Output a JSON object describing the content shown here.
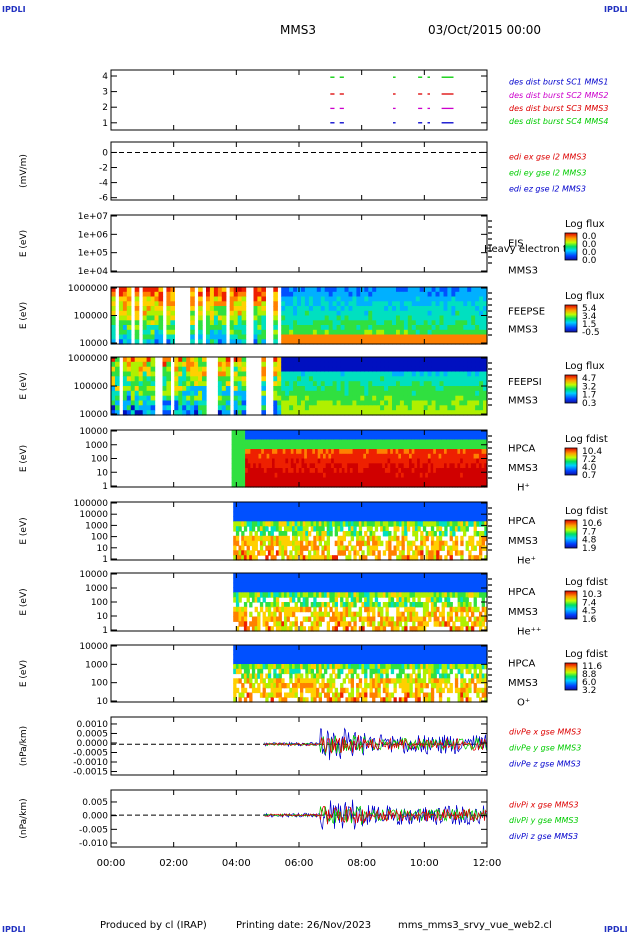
{
  "header": {
    "corner_tl": "IPDLI",
    "corner_tr": "IPDLI",
    "corner_bl": "IPDLI",
    "corner_br": "IPDLI",
    "spacecraft": "MMS3",
    "date": "03/Oct/2015 00:00"
  },
  "footer": {
    "produced_by": "Produced by cl (IRAP)",
    "printing_date": "Printing date: 26/Nov/2023",
    "filename": "mms_mms3_srvy_vue_web2.cl"
  },
  "colors": {
    "red": "#dd0000",
    "green": "#00cc00",
    "blue": "#0000cc",
    "magenta": "#cc00cc"
  },
  "chart_data": {
    "type": "multi-panel time series",
    "x_ticks": [
      "00:00",
      "02:00",
      "04:00",
      "06:00",
      "08:00",
      "10:00",
      "12:00"
    ],
    "x_range_hours": [
      0,
      12
    ],
    "panels": [
      {
        "id": "burst",
        "type": "timeline",
        "yticks": [
          "4",
          "3",
          "2",
          "1"
        ],
        "ylabel": "",
        "legend": [
          {
            "text": "des dist burst SC1 MMS1",
            "color": "#0000cc"
          },
          {
            "text": "des dist burst SC2 MMS2",
            "color": "#cc00cc"
          },
          {
            "text": "des dist burst SC3 MMS3",
            "color": "#dd0000"
          },
          {
            "text": "des dist burst SC4 MMS4",
            "color": "#00cc00"
          }
        ],
        "intervals_hours": [
          [
            7.0,
            7.1
          ],
          [
            7.3,
            7.4
          ],
          [
            9.0,
            9.05
          ],
          [
            9.8,
            9.9
          ],
          [
            10.1,
            10.15
          ],
          [
            10.55,
            10.9
          ]
        ]
      },
      {
        "id": "edi",
        "type": "line",
        "ylabel": "(mV/m)",
        "yticks": [
          "0",
          "-2",
          "-4",
          "-6"
        ],
        "ylim": [
          -7,
          1
        ],
        "legend": [
          {
            "text": "edi ex gse l2 MMS3",
            "color": "#dd0000"
          },
          {
            "text": "edi ey gse l2 MMS3",
            "color": "#00cc00"
          },
          {
            "text": "edi ez gse l2 MMS3",
            "color": "#0000cc"
          }
        ],
        "reference_line": 0
      },
      {
        "id": "eis",
        "type": "spectrogram",
        "ylabel": "E (eV)",
        "yticks": [
          "1e+07",
          "1e+06",
          "1e+05",
          "1e+04"
        ],
        "labels": [
          "EIS",
          "MMS3"
        ],
        "overlay_text": "Heavy electron to",
        "cbar_title": "Log flux",
        "cbar_ticks": [
          "0.0",
          "0.0",
          "0.0",
          "0.0"
        ],
        "data_start_hours": null
      },
      {
        "id": "feepse",
        "type": "spectrogram",
        "ylabel": "E (eV)",
        "yticks": [
          "1000000",
          "100000",
          "10000"
        ],
        "labels": [
          "FEEPSE",
          "MMS3"
        ],
        "cbar_title": "Log flux",
        "cbar_ticks": [
          "5.4",
          "3.4",
          "1.5",
          "-0.5"
        ],
        "data_start_hours": 0
      },
      {
        "id": "feepsi",
        "type": "spectrogram",
        "ylabel": "E (eV)",
        "yticks": [
          "1000000",
          "100000",
          "10000"
        ],
        "labels": [
          "FEEPSI",
          "MMS3"
        ],
        "cbar_title": "Log flux",
        "cbar_ticks": [
          "4.7",
          "3.2",
          "1.7",
          "0.3"
        ],
        "data_start_hours": 0
      },
      {
        "id": "hpca_h",
        "type": "spectrogram",
        "ylabel": "E (eV)",
        "yticks": [
          "10000",
          "1000",
          "100",
          "10",
          "1"
        ],
        "labels": [
          "HPCA",
          "MMS3",
          "H⁺"
        ],
        "cbar_title": "Log fdist",
        "cbar_ticks": [
          "10.4",
          "7.2",
          "4.0",
          "0.7"
        ],
        "data_start_hours": 3.85
      },
      {
        "id": "hpca_he1",
        "type": "spectrogram",
        "ylabel": "E (eV)",
        "yticks": [
          "100000",
          "10000",
          "1000",
          "100",
          "10",
          "1"
        ],
        "labels": [
          "HPCA",
          "MMS3",
          "He⁺"
        ],
        "cbar_title": "Log fdist",
        "cbar_ticks": [
          "10.6",
          "7.7",
          "4.8",
          "1.9"
        ],
        "data_start_hours": 3.9
      },
      {
        "id": "hpca_he2",
        "type": "spectrogram",
        "ylabel": "E (eV)",
        "yticks": [
          "10000",
          "1000",
          "100",
          "10",
          "1"
        ],
        "labels": [
          "HPCA",
          "MMS3",
          "He⁺⁺"
        ],
        "cbar_title": "Log fdist",
        "cbar_ticks": [
          "10.3",
          "7.4",
          "4.5",
          "1.6"
        ],
        "data_start_hours": 3.9
      },
      {
        "id": "hpca_o",
        "type": "spectrogram",
        "ylabel": "E (eV)",
        "yticks": [
          "10000",
          "1000",
          "100",
          "10"
        ],
        "labels": [
          "HPCA",
          "MMS3",
          "O⁺"
        ],
        "cbar_title": "Log fdist",
        "cbar_ticks": [
          "11.6",
          "8.8",
          "6.0",
          "3.2"
        ],
        "data_start_hours": 3.9
      },
      {
        "id": "divpe",
        "type": "line",
        "ylabel": "(nPa/km)",
        "yticks": [
          "0.0010",
          "0.0005",
          "0.0000",
          "-0.0005",
          "-0.0010",
          "-0.0015"
        ],
        "ylim": [
          -0.0017,
          0.0013
        ],
        "legend": [
          {
            "text": "divPe x gse MMS3",
            "color": "#dd0000"
          },
          {
            "text": "divPe y gse MMS3",
            "color": "#00cc00"
          },
          {
            "text": "divPe z gse MMS3",
            "color": "#0000cc"
          }
        ],
        "data_start_hours": 4.9
      },
      {
        "id": "divpi",
        "type": "line",
        "ylabel": "(nPa/km)",
        "yticks": [
          "0.005",
          "0.000",
          "-0.005",
          "-0.010"
        ],
        "ylim": [
          -0.011,
          0.008
        ],
        "legend": [
          {
            "text": "divPi x gse MMS3",
            "color": "#dd0000"
          },
          {
            "text": "divPi y gse MMS3",
            "color": "#00cc00"
          },
          {
            "text": "divPi z gse MMS3",
            "color": "#0000cc"
          }
        ],
        "data_start_hours": 4.9
      }
    ]
  }
}
